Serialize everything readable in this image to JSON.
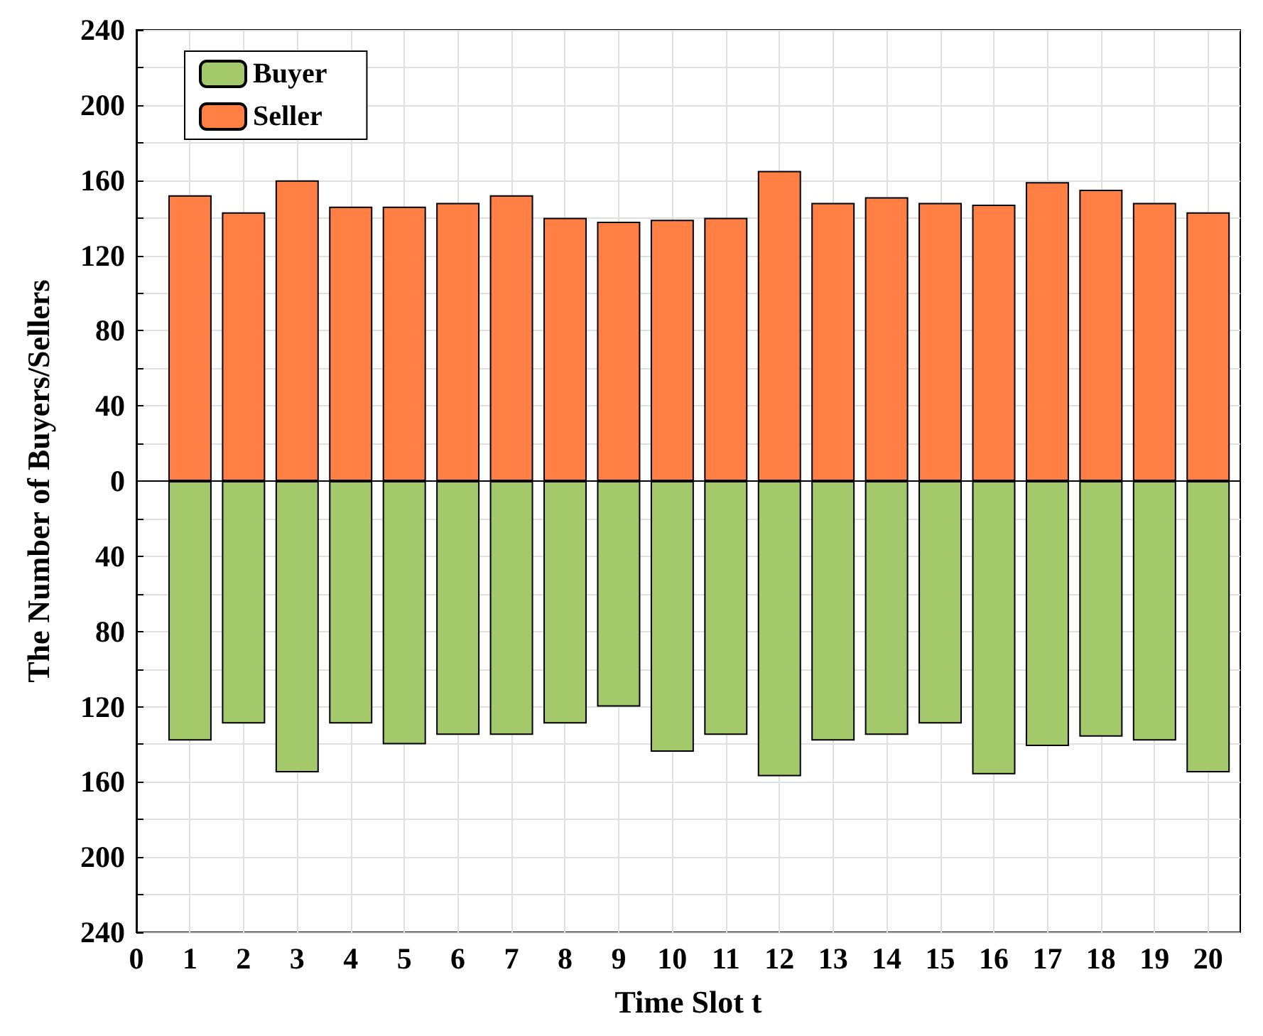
{
  "chart_data": {
    "type": "bar",
    "xlabel": "Time Slot t",
    "ylabel": "The Number of Buyers/Sellers",
    "x": [
      1,
      2,
      3,
      4,
      5,
      6,
      7,
      8,
      9,
      10,
      11,
      12,
      13,
      14,
      15,
      16,
      17,
      18,
      19,
      20
    ],
    "series": [
      {
        "name": "Buyer",
        "color": "#a3c96b",
        "values": [
          -138,
          -129,
          -155,
          -129,
          -140,
          -135,
          -135,
          -129,
          -120,
          -144,
          -135,
          -157,
          -138,
          -135,
          -129,
          -156,
          -141,
          -136,
          -138,
          -155
        ]
      },
      {
        "name": "Seller",
        "color": "#ff7f45",
        "values": [
          152,
          143,
          160,
          146,
          146,
          148,
          152,
          140,
          138,
          139,
          140,
          165,
          148,
          151,
          148,
          147,
          159,
          155,
          148,
          143
        ]
      }
    ],
    "xlim": [
      0,
      20.6
    ],
    "xticks": [
      0,
      1,
      2,
      3,
      4,
      5,
      6,
      7,
      8,
      9,
      10,
      11,
      12,
      13,
      14,
      15,
      16,
      17,
      18,
      19,
      20
    ],
    "ylim": [
      -240,
      240
    ],
    "yticks": [
      {
        "value": -240,
        "label": "240"
      },
      {
        "value": -220,
        "label": null
      },
      {
        "value": -200,
        "label": "200"
      },
      {
        "value": -180,
        "label": null
      },
      {
        "value": -160,
        "label": "160"
      },
      {
        "value": -140,
        "label": null
      },
      {
        "value": -120,
        "label": "120"
      },
      {
        "value": -100,
        "label": null
      },
      {
        "value": -80,
        "label": "80"
      },
      {
        "value": -60,
        "label": null
      },
      {
        "value": -40,
        "label": "40"
      },
      {
        "value": -20,
        "label": null
      },
      0,
      {
        "value": 20,
        "label": null
      },
      40,
      {
        "value": 60,
        "label": null
      },
      80,
      {
        "value": 100,
        "label": null
      },
      120,
      {
        "value": 140,
        "label": null
      },
      160,
      {
        "value": 180,
        "label": null
      },
      200,
      {
        "value": 220,
        "label": null
      },
      240
    ],
    "grid": true,
    "legend": "top left",
    "stacked": true
  }
}
